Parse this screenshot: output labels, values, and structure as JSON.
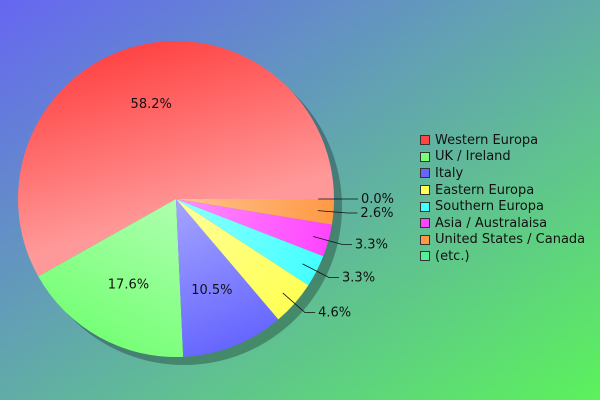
{
  "colors": {
    "bg_top_left": "#6666f2",
    "bg_bottom_right": "#5cf25c"
  },
  "chart_data": {
    "type": "pie",
    "slices": [
      {
        "label": "Western Europa",
        "value": 58.2,
        "value_label": "58.2%",
        "color": "#ff4444"
      },
      {
        "label": "UK / Ireland",
        "value": 17.6,
        "value_label": "17.6%",
        "color": "#77ff77"
      },
      {
        "label": "Italy",
        "value": 10.5,
        "value_label": "10.5%",
        "color": "#6666ff"
      },
      {
        "label": "Eastern Europa",
        "value": 4.6,
        "value_label": "4.6%",
        "color": "#ffff55"
      },
      {
        "label": "Southern Europa",
        "value": 3.3,
        "value_label": "3.3%",
        "color": "#44ffff"
      },
      {
        "label": "Asia / Australaisa",
        "value": 3.3,
        "value_label": "3.3%",
        "color": "#ff44ff"
      },
      {
        "label": "United States / Canada",
        "value": 2.6,
        "value_label": "2.6%",
        "color": "#ff9944"
      },
      {
        "label": "(etc.)",
        "value": 0.0,
        "value_label": "0.0%",
        "color": "#55ee99"
      }
    ],
    "legend_position": "right"
  }
}
